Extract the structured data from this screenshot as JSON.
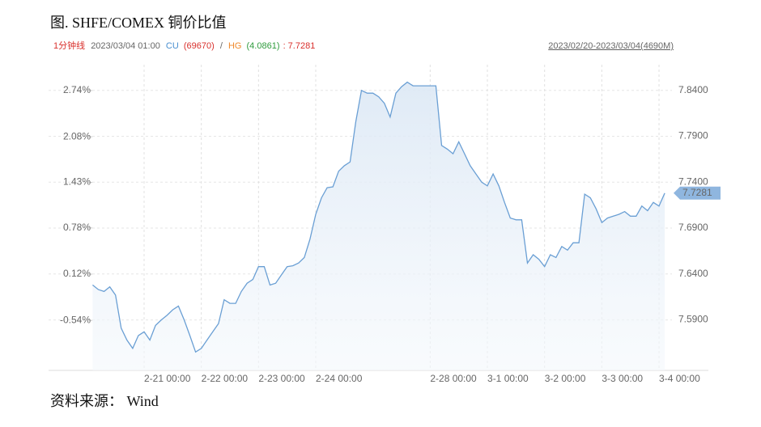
{
  "chart_data": {
    "type": "line",
    "title": "图. SHFE/COMEX 铜价比值",
    "info": {
      "interval": "1分钟线",
      "time": "2023/03/04 01:00",
      "cu_label": "CU",
      "cu_value": "(69670)",
      "sep": "/",
      "hg_label": "HG",
      "hg_value": "(4.0861)",
      "ratio": ": 7.7281"
    },
    "range_label": "2023/02/20-2023/03/04(4690M)",
    "source": "资料来源： Wind",
    "categories": [
      null,
      null,
      null,
      null,
      null,
      null,
      null,
      null,
      null,
      "2-21 00:00",
      null,
      null,
      null,
      null,
      null,
      null,
      null,
      null,
      null,
      "2-22 00:00",
      null,
      null,
      null,
      null,
      null,
      null,
      null,
      null,
      null,
      "2-23 00:00",
      null,
      null,
      null,
      null,
      null,
      null,
      null,
      null,
      null,
      "2-24 00:00",
      null,
      null,
      null,
      null,
      null,
      null,
      null,
      null,
      null,
      null,
      null,
      null,
      null,
      null,
      null,
      null,
      null,
      null,
      null,
      "2-28 00:00",
      null,
      null,
      null,
      null,
      null,
      null,
      null,
      null,
      null,
      "3-1 00:00",
      null,
      null,
      null,
      null,
      null,
      null,
      null,
      null,
      null,
      "3-2 00:00",
      null,
      null,
      null,
      null,
      null,
      null,
      null,
      null,
      null,
      "3-3 00:00",
      null,
      null,
      null,
      null,
      null,
      null,
      null,
      null,
      null,
      "3-4 00:00",
      null
    ],
    "series": [
      {
        "name": "CU/HG",
        "color": "#6a9fd4",
        "values": [
          7.628,
          7.623,
          7.621,
          7.626,
          7.617,
          7.581,
          7.568,
          7.559,
          7.573,
          7.577,
          7.568,
          7.584,
          7.59,
          7.595,
          7.601,
          7.605,
          7.59,
          7.573,
          7.555,
          7.559,
          7.568,
          7.577,
          7.586,
          7.612,
          7.608,
          7.608,
          7.621,
          7.63,
          7.634,
          7.648,
          7.648,
          7.628,
          7.63,
          7.639,
          7.648,
          7.649,
          7.652,
          7.658,
          7.678,
          7.705,
          7.723,
          7.734,
          7.735,
          7.752,
          7.758,
          7.762,
          7.806,
          7.84,
          7.837,
          7.837,
          7.833,
          7.826,
          7.811,
          7.837,
          7.844,
          7.849,
          7.845,
          7.845,
          7.845,
          7.845,
          7.845,
          7.78,
          7.776,
          7.771,
          7.784,
          7.771,
          7.758,
          7.749,
          7.74,
          7.736,
          7.749,
          7.736,
          7.718,
          7.701,
          7.699,
          7.699,
          7.652,
          7.661,
          7.656,
          7.648,
          7.661,
          7.658,
          7.67,
          7.666,
          7.674,
          7.674,
          7.727,
          7.723,
          7.711,
          7.696,
          7.701,
          7.703,
          7.705,
          7.708,
          7.703,
          7.703,
          7.714,
          7.709,
          7.718,
          7.714,
          7.7281
        ]
      }
    ],
    "ylim": [
      7.535,
      7.868
    ],
    "yticks": [
      {
        "value": 7.59,
        "label": "7.5900"
      },
      {
        "value": 7.64,
        "label": "7.6400"
      },
      {
        "value": 7.69,
        "label": "7.6900"
      },
      {
        "value": 7.74,
        "label": "7.7400"
      },
      {
        "value": 7.79,
        "label": "7.7900"
      },
      {
        "value": 7.84,
        "label": "7.8400"
      }
    ],
    "y2lim": [
      -1.253,
      3.109
    ],
    "y2ticks": [
      {
        "value": -0.54,
        "label": "-0.54%"
      },
      {
        "value": 0.12,
        "label": "0.12%"
      },
      {
        "value": 0.78,
        "label": "0.78%"
      },
      {
        "value": 1.43,
        "label": "1.43%"
      },
      {
        "value": 2.08,
        "label": "2.08%"
      },
      {
        "value": 2.74,
        "label": "2.74%"
      }
    ],
    "grid": true
  }
}
